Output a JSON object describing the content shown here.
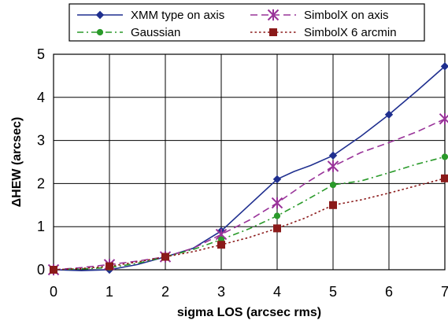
{
  "chart_data": {
    "type": "line",
    "title": "",
    "xlabel": "sigma LOS (arcsec rms)",
    "ylabel": "ΔHEW (arcsec)",
    "xlim": [
      0,
      7
    ],
    "ylim": [
      0,
      5
    ],
    "xticks": [
      "0",
      "1",
      "2",
      "3",
      "4",
      "5",
      "6",
      "7"
    ],
    "yticks": [
      "0",
      "1",
      "2",
      "3",
      "4",
      "5"
    ],
    "grid": true,
    "legend_position": "top-right",
    "series": [
      {
        "name": "XMM type on axis",
        "color": "#1f2f8f",
        "line_style": "solid",
        "marker": "diamond",
        "points": [
          [
            0,
            0
          ],
          [
            1,
            0
          ],
          [
            2,
            0.3
          ],
          [
            3,
            0.9
          ],
          [
            4,
            2.1
          ],
          [
            5,
            2.65
          ],
          [
            6,
            3.6
          ],
          [
            7,
            4.72
          ]
        ],
        "curve": [
          [
            0,
            0
          ],
          [
            0.5,
            -0.02
          ],
          [
            1,
            0
          ],
          [
            1.5,
            0.12
          ],
          [
            2,
            0.3
          ],
          [
            2.5,
            0.5
          ],
          [
            3,
            0.9
          ],
          [
            3.5,
            1.5
          ],
          [
            4,
            2.1
          ],
          [
            4.3,
            2.28
          ],
          [
            4.6,
            2.42
          ],
          [
            5,
            2.65
          ],
          [
            5.5,
            3.1
          ],
          [
            6,
            3.6
          ],
          [
            6.5,
            4.15
          ],
          [
            7,
            4.72
          ],
          [
            7.15,
            4.86
          ]
        ]
      },
      {
        "name": "SimbolX on axis",
        "color": "#993399",
        "line_style": "dashed",
        "marker": "star",
        "points": [
          [
            0,
            0
          ],
          [
            1,
            0.12
          ],
          [
            2,
            0.3
          ],
          [
            3,
            0.82
          ],
          [
            4,
            1.55
          ],
          [
            5,
            2.4
          ],
          [
            7,
            3.5
          ]
        ],
        "curve": [
          [
            0,
            0
          ],
          [
            0.5,
            0.05
          ],
          [
            1,
            0.12
          ],
          [
            1.5,
            0.2
          ],
          [
            2,
            0.3
          ],
          [
            2.5,
            0.5
          ],
          [
            3,
            0.82
          ],
          [
            3.5,
            1.15
          ],
          [
            4,
            1.55
          ],
          [
            4.5,
            2.0
          ],
          [
            5,
            2.4
          ],
          [
            5.5,
            2.72
          ],
          [
            6,
            2.95
          ],
          [
            6.5,
            3.2
          ],
          [
            7,
            3.5
          ],
          [
            7.15,
            3.62
          ]
        ]
      },
      {
        "name": "Gaussian",
        "color": "#2a9a2a",
        "line_style": "dash-dot",
        "marker": "circle",
        "points": [
          [
            0,
            0
          ],
          [
            1,
            0.05
          ],
          [
            2,
            0.3
          ],
          [
            3,
            0.7
          ],
          [
            4,
            1.25
          ],
          [
            5,
            1.97
          ],
          [
            7,
            2.62
          ]
        ],
        "curve": [
          [
            0,
            0
          ],
          [
            0.5,
            0.02
          ],
          [
            1,
            0.05
          ],
          [
            1.5,
            0.15
          ],
          [
            2,
            0.3
          ],
          [
            2.5,
            0.47
          ],
          [
            3,
            0.7
          ],
          [
            3.5,
            0.95
          ],
          [
            4,
            1.25
          ],
          [
            4.5,
            1.6
          ],
          [
            5,
            1.97
          ],
          [
            5.5,
            2.06
          ],
          [
            6,
            2.25
          ],
          [
            6.5,
            2.45
          ],
          [
            7,
            2.62
          ],
          [
            7.15,
            2.7
          ]
        ]
      },
      {
        "name": "SimbolX 6 arcmin",
        "color": "#8b1a1a",
        "line_style": "dotted",
        "marker": "square",
        "points": [
          [
            0,
            0
          ],
          [
            1,
            0.08
          ],
          [
            2,
            0.3
          ],
          [
            3,
            0.58
          ],
          [
            4,
            0.96
          ],
          [
            5,
            1.5
          ],
          [
            7,
            2.12
          ]
        ],
        "curve": [
          [
            0,
            0
          ],
          [
            0.5,
            0.03
          ],
          [
            1,
            0.08
          ],
          [
            1.5,
            0.18
          ],
          [
            2,
            0.3
          ],
          [
            2.5,
            0.42
          ],
          [
            3,
            0.58
          ],
          [
            3.5,
            0.75
          ],
          [
            4,
            0.96
          ],
          [
            4.5,
            1.2
          ],
          [
            5,
            1.5
          ],
          [
            5.5,
            1.62
          ],
          [
            6,
            1.78
          ],
          [
            6.5,
            1.95
          ],
          [
            7,
            2.12
          ]
        ]
      }
    ]
  }
}
